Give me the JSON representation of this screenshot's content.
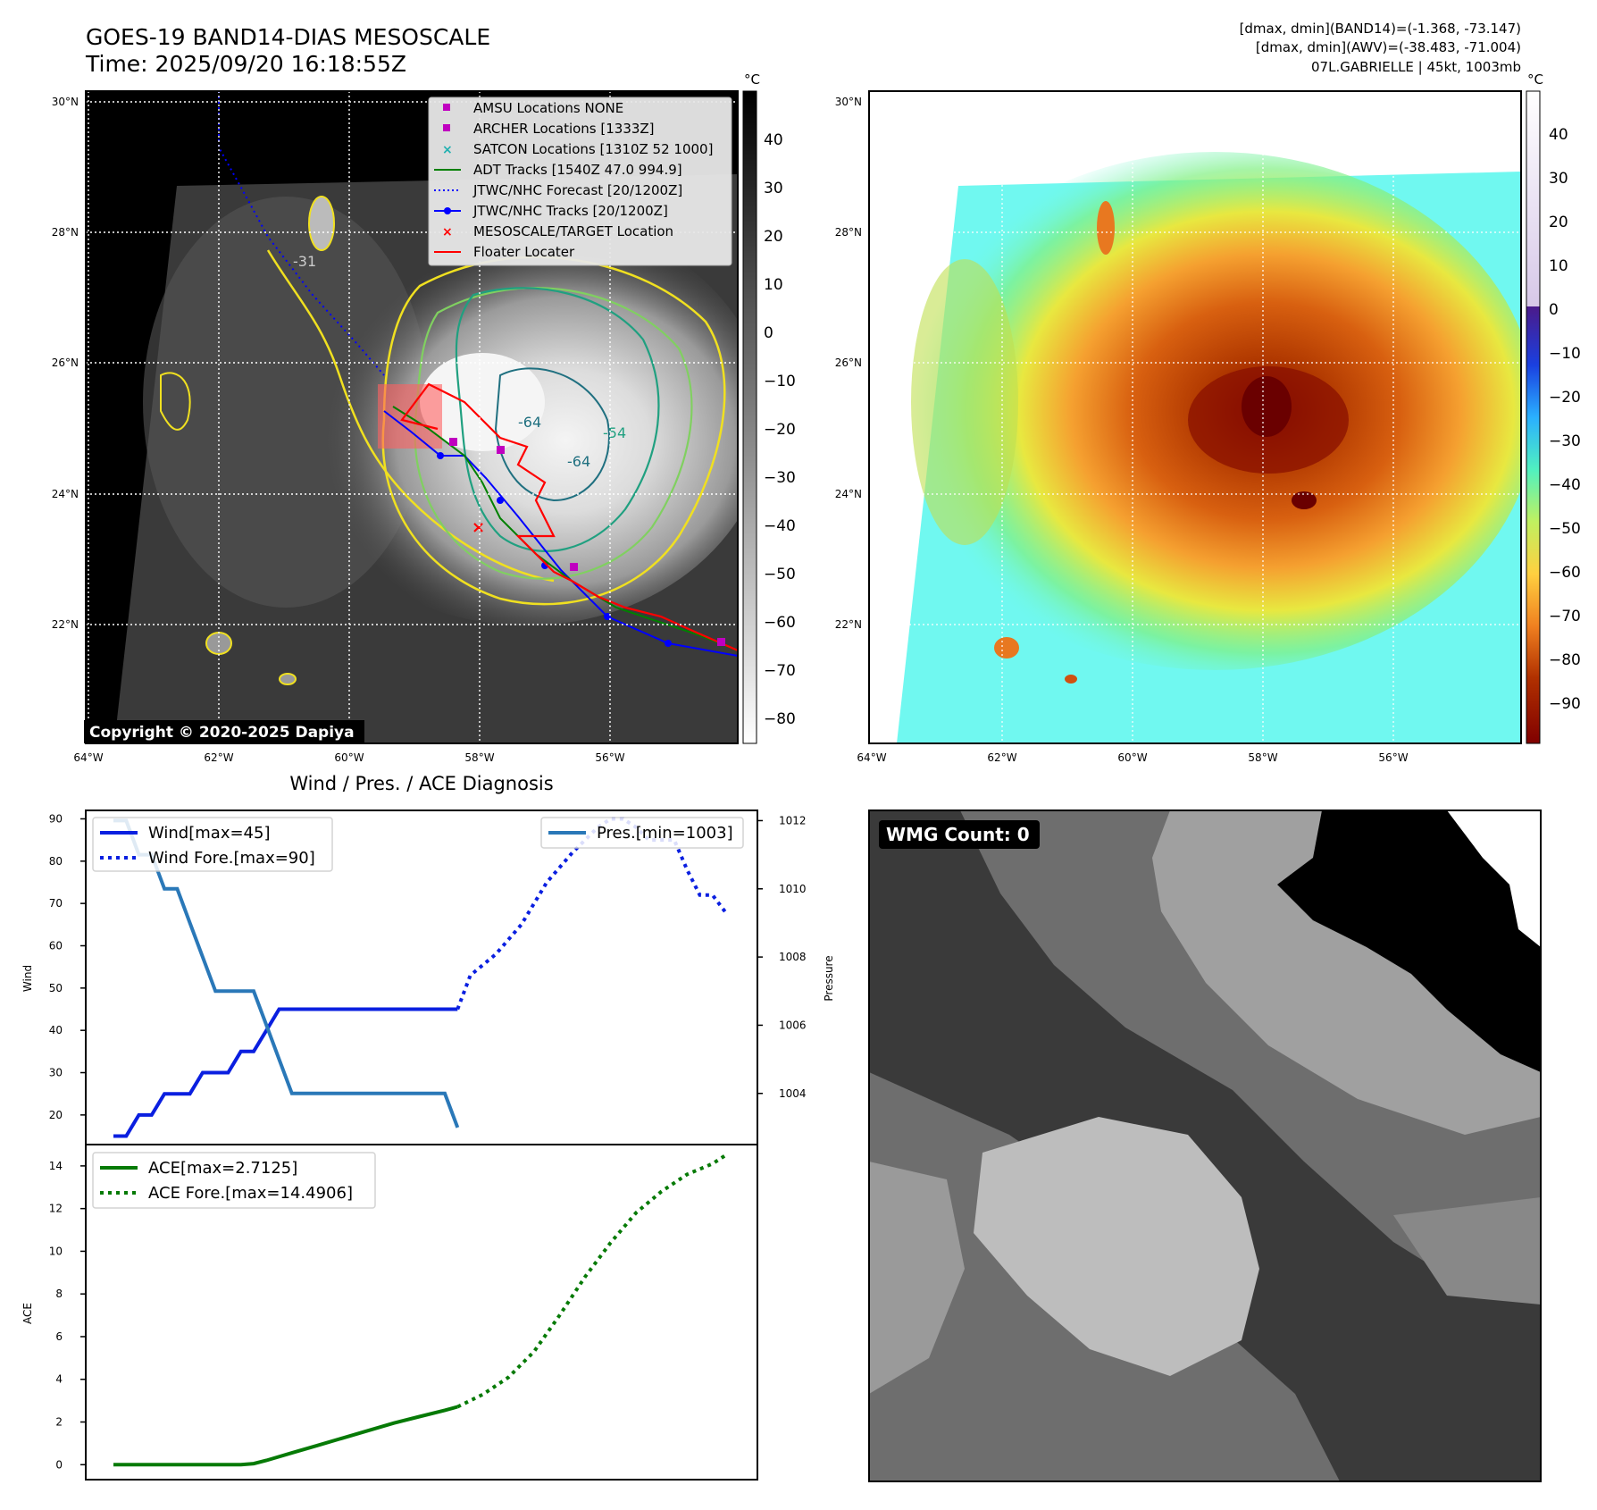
{
  "header": {
    "title_line1": "GOES-19 BAND14-DIAS MESOSCALE",
    "title_line2": "Time: 2025/09/20 16:18:55Z",
    "right_line1": "[dmax, dmin](BAND14)=(-1.368, -73.147)",
    "right_line2": "[dmax, dmin](AWV)=(-38.483, -71.004)",
    "right_line3": "07L.GABRIELLE | 45kt, 1003mb"
  },
  "map_left": {
    "copyright": "Copyright © 2020-2025 Dapiya",
    "lat_labels": [
      "30°N",
      "28°N",
      "26°N",
      "24°N",
      "22°N"
    ],
    "lon_labels": [
      "64°W",
      "62°W",
      "60°W",
      "58°W",
      "56°W"
    ],
    "contour_labels": [
      "-31",
      "-64",
      "-54",
      "-64"
    ],
    "colorbar_unit": "°C",
    "colorbar_ticks": [
      "40",
      "30",
      "20",
      "10",
      "0",
      "−10",
      "−20",
      "−30",
      "−40",
      "−50",
      "−60",
      "−70",
      "−80"
    ],
    "legend": [
      {
        "label": "AMSU Locations NONE",
        "marker": "square",
        "color": "#c000c0"
      },
      {
        "label": "ARCHER Locations [1333Z]",
        "marker": "square",
        "color": "#c000c0"
      },
      {
        "label": "SATCON Locations [1310Z 52 1000]",
        "marker": "x",
        "color": "#20b0b0"
      },
      {
        "label": "ADT Tracks [1540Z 47.0 994.9]",
        "marker": "line",
        "color": "#008000"
      },
      {
        "label": "JTWC/NHC Forecast [20/1200Z]",
        "marker": "dotted",
        "color": "#0000ff"
      },
      {
        "label": "JTWC/NHC Tracks [20/1200Z]",
        "marker": "line-dot",
        "color": "#0000ff"
      },
      {
        "label": "MESOSCALE/TARGET Location",
        "marker": "x",
        "color": "#ff0000"
      },
      {
        "label": "Floater Locater",
        "marker": "line",
        "color": "#ff0000"
      }
    ]
  },
  "map_right": {
    "lat_labels": [
      "30°N",
      "28°N",
      "26°N",
      "24°N",
      "22°N"
    ],
    "lon_labels": [
      "64°W",
      "62°W",
      "60°W",
      "58°W",
      "56°W"
    ],
    "colorbar_unit": "°C",
    "colorbar_ticks": [
      "40",
      "30",
      "20",
      "10",
      "0",
      "−10",
      "−20",
      "−30",
      "−40",
      "−50",
      "−60",
      "−70",
      "−80",
      "−90"
    ]
  },
  "wmg": {
    "label": "WMG Count: 0"
  },
  "colors": {
    "wind": "#0a1fe0",
    "pressure": "#2a78b8",
    "ace": "#067a06"
  },
  "chart_data": [
    {
      "type": "line",
      "title": "Wind / Pres. / ACE Diagnosis",
      "ylabel": "Wind",
      "y2label": "Pressure",
      "ylim": [
        13,
        92
      ],
      "y2lim": [
        1002.5,
        1012.3
      ],
      "yticks": [
        "90",
        "80",
        "70",
        "60",
        "50",
        "40",
        "30",
        "20"
      ],
      "y2ticks": [
        "1012",
        "1010",
        "1008",
        "1006",
        "1004"
      ],
      "legend_left": [
        "Wind[max=45]",
        "Wind Fore.[max=90]"
      ],
      "legend_right": [
        "Pres.[min=1003]"
      ],
      "series": [
        {
          "name": "Wind[max=45]",
          "axis": "left",
          "style": "solid",
          "x": [
            0,
            1,
            2,
            3,
            4,
            5,
            6,
            7,
            8,
            9,
            10,
            11,
            12,
            13,
            14,
            15,
            16,
            17,
            18,
            19,
            20,
            21,
            22,
            23,
            24,
            25,
            26,
            27
          ],
          "y": [
            15,
            15,
            20,
            20,
            25,
            25,
            25,
            30,
            30,
            30,
            35,
            35,
            40,
            45,
            45,
            45,
            45,
            45,
            45,
            45,
            45,
            45,
            45,
            45,
            45,
            45,
            45,
            45
          ]
        },
        {
          "name": "Wind Fore.[max=90]",
          "axis": "left",
          "style": "dotted",
          "x": [
            27,
            28,
            30,
            32,
            34,
            36,
            38,
            39,
            40,
            41,
            42,
            44,
            45,
            46,
            47,
            48
          ],
          "y": [
            45,
            53,
            58,
            65,
            75,
            82,
            88,
            90,
            90,
            88,
            85,
            85,
            78,
            72,
            72,
            68
          ]
        },
        {
          "name": "Pres.[min=1003]",
          "axis": "right",
          "style": "solid",
          "x": [
            0,
            1,
            2,
            3,
            4,
            5,
            6,
            7,
            8,
            9,
            10,
            11,
            12,
            13,
            14,
            15,
            16,
            17,
            18,
            19,
            20,
            21,
            22,
            23,
            24,
            25,
            26,
            27
          ],
          "y": [
            1012,
            1012,
            1011,
            1011,
            1010,
            1010,
            1009,
            1008,
            1007,
            1007,
            1007,
            1007,
            1006,
            1005,
            1004,
            1004,
            1004,
            1004,
            1004,
            1004,
            1004,
            1004,
            1004,
            1004,
            1004,
            1004,
            1004,
            1003
          ]
        }
      ]
    },
    {
      "type": "line",
      "ylabel": "ACE",
      "ylim": [
        -0.7,
        15
      ],
      "yticks": [
        "14",
        "12",
        "10",
        "8",
        "6",
        "4",
        "2",
        "0"
      ],
      "legend": [
        "ACE[max=2.7125]",
        "ACE Fore.[max=14.4906]"
      ],
      "series": [
        {
          "name": "ACE[max=2.7125]",
          "style": "solid",
          "x": [
            0,
            5,
            10,
            11,
            12,
            14,
            16,
            18,
            20,
            22,
            24,
            26,
            27
          ],
          "y": [
            0,
            0,
            0,
            0.05,
            0.2,
            0.55,
            0.9,
            1.25,
            1.6,
            1.95,
            2.25,
            2.55,
            2.7125
          ]
        },
        {
          "name": "ACE Fore.[max=14.4906]",
          "style": "dotted",
          "x": [
            27,
            29,
            31,
            33,
            35,
            37,
            39,
            41,
            43,
            45,
            47,
            48
          ],
          "y": [
            2.7125,
            3.3,
            4.1,
            5.3,
            7.0,
            8.8,
            10.4,
            11.8,
            12.8,
            13.6,
            14.1,
            14.4906
          ]
        }
      ]
    }
  ]
}
